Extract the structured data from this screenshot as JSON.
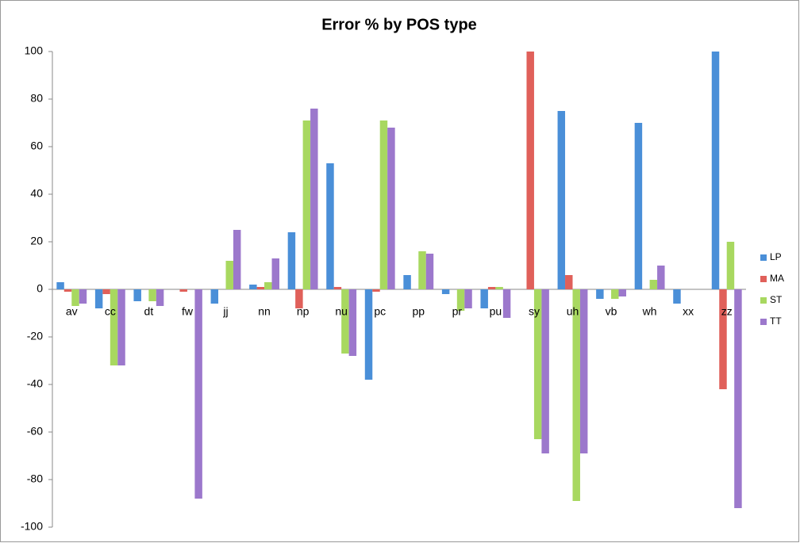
{
  "chart_data": {
    "type": "bar",
    "title": "Error % by POS type",
    "categories": [
      "av",
      "cc",
      "dt",
      "fw",
      "jj",
      "nn",
      "np",
      "nu",
      "pc",
      "pp",
      "pr",
      "pu",
      "sy",
      "uh",
      "vb",
      "wh",
      "xx",
      "zz"
    ],
    "series": [
      {
        "name": "LP",
        "color": "#4a8fd8",
        "values": [
          3,
          -8,
          -5,
          0,
          -6,
          2,
          24,
          53,
          -38,
          6,
          -2,
          -8,
          0,
          75,
          -4,
          70,
          -6,
          100
        ]
      },
      {
        "name": "MA",
        "color": "#e0605a",
        "values": [
          -1,
          -2,
          0,
          -1,
          0,
          1,
          -8,
          1,
          -1,
          0,
          0,
          1,
          100,
          6,
          0,
          0,
          0,
          -42
        ]
      },
      {
        "name": "ST",
        "color": "#a8d860",
        "values": [
          -7,
          -32,
          -5,
          0,
          12,
          3,
          71,
          -27,
          71,
          16,
          -9,
          1,
          -63,
          -89,
          -4,
          4,
          0,
          20
        ]
      },
      {
        "name": "TT",
        "color": "#9c78cc",
        "values": [
          -6,
          -32,
          -7,
          -88,
          25,
          13,
          76,
          -28,
          68,
          15,
          -8,
          -12,
          -69,
          -69,
          -3,
          10,
          0,
          -92
        ]
      }
    ],
    "ylim": [
      -100,
      100
    ],
    "yticks": [
      -100,
      -80,
      -60,
      -40,
      -20,
      0,
      20,
      40,
      60,
      80,
      100
    ]
  }
}
